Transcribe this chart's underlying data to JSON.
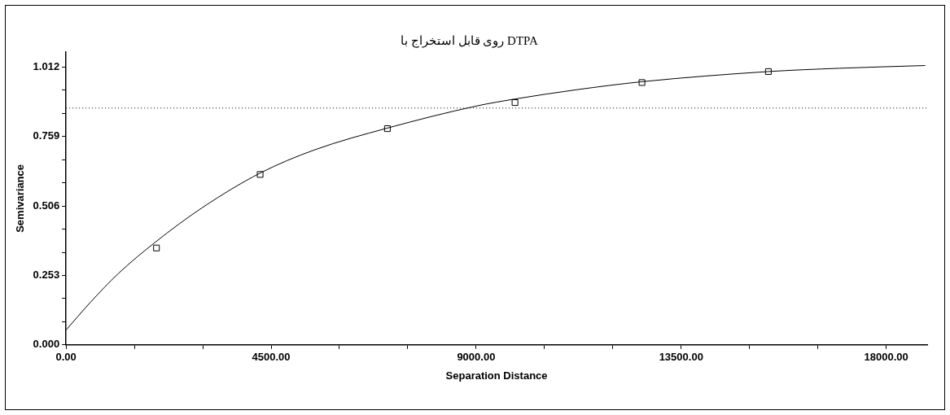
{
  "chart_data": {
    "type": "scatter",
    "title": "روی قابل استخراج با DTPA",
    "xlabel": "Separation Distance",
    "ylabel": "Semivariance",
    "xlim": [
      0,
      18900
    ],
    "ylim": [
      0,
      1.067
    ],
    "xticks": [
      {
        "value": 0,
        "label": "0.00"
      },
      {
        "value": 1500,
        "label": null
      },
      {
        "value": 3000,
        "label": null
      },
      {
        "value": 4500,
        "label": "4500.00"
      },
      {
        "value": 6000,
        "label": null
      },
      {
        "value": 7500,
        "label": null
      },
      {
        "value": 9000,
        "label": "9000.00"
      },
      {
        "value": 10500,
        "label": null
      },
      {
        "value": 12000,
        "label": null
      },
      {
        "value": 13500,
        "label": "13500.00"
      },
      {
        "value": 15000,
        "label": null
      },
      {
        "value": 16500,
        "label": null
      },
      {
        "value": 18000,
        "label": "18000.00"
      }
    ],
    "yticks": [
      {
        "value": 0,
        "label": "0.000"
      },
      {
        "value": 0.0843,
        "label": null
      },
      {
        "value": 0.1687,
        "label": null
      },
      0.253,
      {
        "value": 0.3373,
        "label": null
      },
      {
        "value": 0.4217,
        "label": null
      },
      0.506,
      {
        "value": 0.5903,
        "label": null
      },
      {
        "value": 0.6747,
        "label": null
      },
      0.759,
      {
        "value": 0.8433,
        "label": null
      },
      {
        "value": 0.9277,
        "label": null
      },
      1.012
    ],
    "grid": false,
    "legend": false,
    "series": [
      {
        "type": "line",
        "color": "#000000",
        "marker": "none",
        "line_style": "solid",
        "x": [
          0,
          534,
          1148,
          1965,
          2990,
          4260,
          5444,
          7053,
          9024,
          9853,
          11215,
          12640,
          15414,
          16980,
          18858
        ],
        "values": [
          0.054,
          0.155,
          0.26,
          0.375,
          0.5,
          0.626,
          0.71,
          0.79,
          0.871,
          0.896,
          0.93,
          0.959,
          0.996,
          1.008,
          1.018
        ]
      },
      {
        "type": "scatter",
        "color": "#000000",
        "marker": "square",
        "x": [
          1984,
          4260,
          7053,
          9853,
          12640,
          15414
        ],
        "values": [
          0.353,
          0.621,
          0.788,
          0.883,
          0.956,
          0.996
        ]
      }
    ],
    "ref_lines": [
      {
        "axis": "y",
        "value": 0.863,
        "color": "#000000",
        "line_style": "dotted"
      }
    ]
  }
}
